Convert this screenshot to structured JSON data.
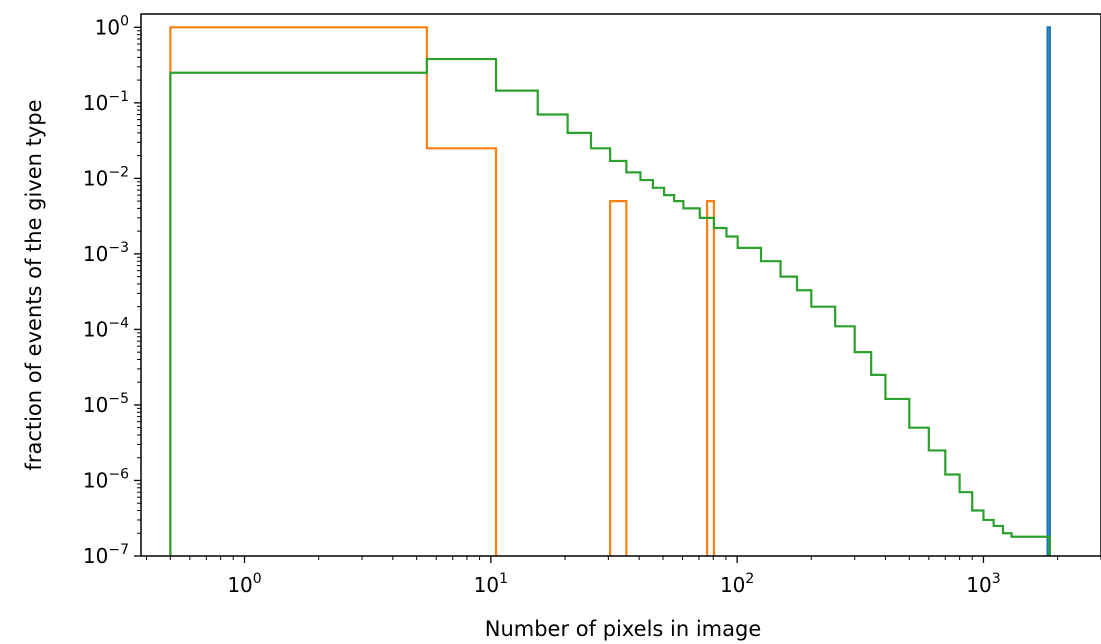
{
  "chart_data": {
    "type": "line",
    "style": "step histogram",
    "title": "",
    "xlabel": "Number of pixels in image",
    "ylabel": "fraction of events of the given type",
    "xscale": "log",
    "yscale": "log",
    "xlim": [
      0.38,
      3000
    ],
    "ylim": [
      1e-07,
      1.5
    ],
    "grid": false,
    "legend": "none",
    "x_ticks": [
      {
        "base": "10",
        "exp": "0",
        "value": 1
      },
      {
        "base": "10",
        "exp": "1",
        "value": 10
      },
      {
        "base": "10",
        "exp": "2",
        "value": 100
      },
      {
        "base": "10",
        "exp": "3",
        "value": 1000
      }
    ],
    "y_ticks": [
      {
        "base": "10",
        "exp": "0",
        "value": 1
      },
      {
        "base": "10",
        "exp": "−1",
        "value": 0.1
      },
      {
        "base": "10",
        "exp": "−2",
        "value": 0.01
      },
      {
        "base": "10",
        "exp": "−3",
        "value": 0.001
      },
      {
        "base": "10",
        "exp": "−4",
        "value": 0.0001
      },
      {
        "base": "10",
        "exp": "−5",
        "value": 1e-05
      },
      {
        "base": "10",
        "exp": "−6",
        "value": 1e-06
      },
      {
        "base": "10",
        "exp": "−7",
        "value": 1e-07
      }
    ],
    "series": [
      {
        "color": "#1f77b4",
        "edges": [
          1820,
          1860
        ],
        "values": [
          1.0
        ]
      },
      {
        "color": "#ff7f0e",
        "edges": [
          0.5,
          5.5,
          10.5,
          30.5,
          35.5,
          75.5,
          80.5
        ],
        "values": [
          1.0,
          0.025,
          0,
          0.005,
          0,
          0.005
        ]
      },
      {
        "color": "#2ca02c",
        "edges": [
          0.5,
          5.5,
          10.5,
          15.5,
          20.5,
          25.5,
          30.5,
          35.5,
          40.5,
          45.5,
          50.5,
          55.5,
          60.5,
          70.5,
          80.5,
          90.5,
          100.5,
          125,
          150,
          175,
          200,
          250,
          300,
          350,
          400,
          500,
          600,
          700,
          800,
          900,
          1000,
          1100,
          1200,
          1300,
          1400,
          1500,
          1600,
          1700,
          1860
        ],
        "values": [
          0.25,
          0.38,
          0.145,
          0.07,
          0.04,
          0.025,
          0.017,
          0.012,
          0.0095,
          0.0075,
          0.006,
          0.005,
          0.004,
          0.003,
          0.0022,
          0.0017,
          0.0012,
          0.0008,
          0.0005,
          0.00033,
          0.0002,
          0.00011,
          5e-05,
          2.5e-05,
          1.2e-05,
          5e-06,
          2.5e-06,
          1.2e-06,
          7e-07,
          4e-07,
          3e-07,
          2.5e-07,
          2e-07,
          1.8e-07,
          1.8e-07,
          1.8e-07,
          1.8e-07,
          1.8e-07
        ]
      }
    ]
  }
}
